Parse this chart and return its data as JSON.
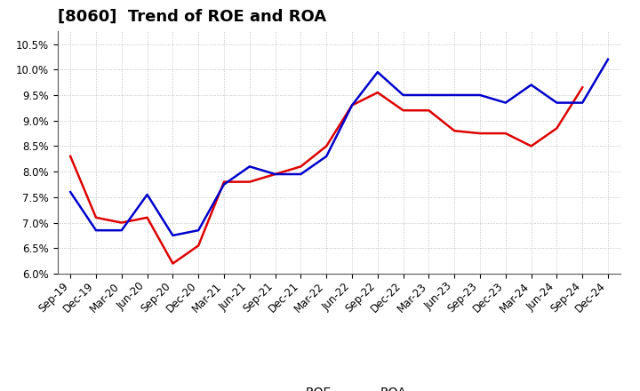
{
  "title": "[8060]  Trend of ROE and ROA",
  "labels": [
    "Sep-19",
    "Dec-19",
    "Mar-20",
    "Jun-20",
    "Sep-20",
    "Dec-20",
    "Mar-21",
    "Jun-21",
    "Sep-21",
    "Dec-21",
    "Mar-22",
    "Jun-22",
    "Sep-22",
    "Dec-22",
    "Mar-23",
    "Jun-23",
    "Sep-23",
    "Dec-23",
    "Mar-24",
    "Jun-24",
    "Sep-24",
    "Dec-24"
  ],
  "ROE": [
    8.3,
    7.1,
    7.0,
    7.1,
    6.2,
    6.55,
    7.8,
    7.8,
    7.95,
    8.1,
    8.5,
    9.3,
    9.55,
    9.2,
    9.2,
    8.8,
    8.75,
    8.75,
    8.5,
    8.85,
    9.65,
    null
  ],
  "ROA": [
    7.6,
    6.85,
    6.85,
    7.55,
    6.75,
    6.85,
    7.75,
    8.1,
    7.95,
    7.95,
    8.3,
    9.3,
    9.95,
    9.5,
    9.5,
    9.5,
    9.5,
    9.35,
    9.7,
    9.35,
    9.35,
    10.2
  ],
  "ylim": [
    6.0,
    10.75
  ],
  "yticks": [
    6.0,
    6.5,
    7.0,
    7.5,
    8.0,
    8.5,
    9.0,
    9.5,
    10.0,
    10.5
  ],
  "roe_color": "#dd0000",
  "roa_color": "#0000cc",
  "bg_color": "#ffffff",
  "grid_color": "#999999",
  "title_fontsize": 13,
  "tick_fontsize": 8.5,
  "legend_fontsize": 10
}
